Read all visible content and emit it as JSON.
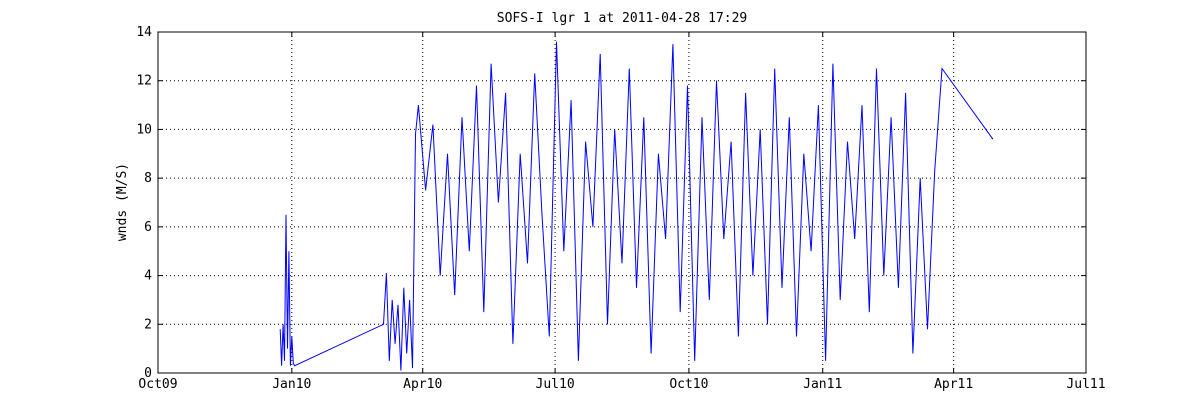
{
  "chart_data": {
    "type": "line",
    "title": "SOFS-I lgr 1 at 2011-04-28 17:29",
    "xlabel": "",
    "ylabel": "wnds (M/S)",
    "x_range": [
      "2009-10-01",
      "2011-07-01"
    ],
    "x_ticks": [
      {
        "date": "2009-10-01",
        "label": "Oct09"
      },
      {
        "date": "2010-01-01",
        "label": "Jan10"
      },
      {
        "date": "2010-04-01",
        "label": "Apr10"
      },
      {
        "date": "2010-07-01",
        "label": "Jul10"
      },
      {
        "date": "2010-10-01",
        "label": "Oct10"
      },
      {
        "date": "2011-01-01",
        "label": "Jan11"
      },
      {
        "date": "2011-04-01",
        "label": "Apr11"
      },
      {
        "date": "2011-07-01",
        "label": "Jul11"
      }
    ],
    "ylim": [
      0,
      14
    ],
    "y_ticks": [
      0,
      2,
      4,
      6,
      8,
      10,
      12,
      14
    ],
    "grid": true,
    "line_color": "#0000ff",
    "series": [
      {
        "x": [
          "2009-12-24",
          "2009-12-25",
          "2009-12-26",
          "2009-12-27",
          "2009-12-28",
          "2009-12-29",
          "2009-12-30",
          "2009-12-31",
          "2010-01-01",
          "2010-01-02",
          "2010-01-03",
          "2010-03-05",
          "2010-03-07",
          "2010-03-09",
          "2010-03-11",
          "2010-03-13",
          "2010-03-15",
          "2010-03-17",
          "2010-03-19",
          "2010-03-21",
          "2010-03-23",
          "2010-03-25",
          "2010-03-27",
          "2010-03-29",
          "2010-04-03",
          "2010-04-08",
          "2010-04-13",
          "2010-04-18",
          "2010-04-23",
          "2010-04-28",
          "2010-05-03",
          "2010-05-08",
          "2010-05-13",
          "2010-05-18",
          "2010-05-23",
          "2010-05-28",
          "2010-06-02",
          "2010-06-07",
          "2010-06-12",
          "2010-06-17",
          "2010-06-22",
          "2010-06-27",
          "2010-07-02",
          "2010-07-07",
          "2010-07-12",
          "2010-07-17",
          "2010-07-22",
          "2010-07-27",
          "2010-08-01",
          "2010-08-06",
          "2010-08-11",
          "2010-08-16",
          "2010-08-21",
          "2010-08-26",
          "2010-08-31",
          "2010-09-05",
          "2010-09-10",
          "2010-09-15",
          "2010-09-20",
          "2010-09-25",
          "2010-09-30",
          "2010-10-05",
          "2010-10-10",
          "2010-10-15",
          "2010-10-20",
          "2010-10-25",
          "2010-10-30",
          "2010-11-04",
          "2010-11-09",
          "2010-11-14",
          "2010-11-19",
          "2010-11-24",
          "2010-11-29",
          "2010-12-04",
          "2010-12-09",
          "2010-12-14",
          "2010-12-19",
          "2010-12-24",
          "2010-12-29",
          "2011-01-03",
          "2011-01-08",
          "2011-01-13",
          "2011-01-18",
          "2011-01-23",
          "2011-01-28",
          "2011-02-02",
          "2011-02-07",
          "2011-02-12",
          "2011-02-17",
          "2011-02-22",
          "2011-02-27",
          "2011-03-04",
          "2011-03-09",
          "2011-03-14",
          "2011-03-19",
          "2011-03-24",
          "2011-04-28"
        ],
        "y": [
          1.8,
          0.3,
          2.0,
          0.5,
          6.5,
          1.0,
          5.0,
          0.3,
          1.5,
          0.4,
          0.3,
          2.0,
          4.1,
          0.5,
          3.0,
          1.2,
          2.8,
          0.1,
          3.5,
          0.8,
          3.0,
          0.2,
          9.8,
          11.0,
          7.5,
          10.2,
          4.0,
          9.0,
          3.2,
          10.5,
          5.0,
          11.8,
          2.5,
          12.7,
          7.0,
          11.5,
          1.2,
          9.0,
          4.5,
          12.3,
          6.5,
          1.5,
          13.6,
          5.0,
          11.2,
          0.5,
          9.5,
          6.0,
          13.1,
          2.0,
          10.0,
          4.5,
          12.5,
          3.5,
          10.5,
          0.8,
          9.0,
          5.5,
          13.5,
          2.5,
          11.8,
          0.5,
          10.5,
          3.0,
          12.0,
          5.5,
          9.5,
          1.5,
          11.5,
          4.0,
          10.0,
          2.0,
          12.5,
          3.5,
          10.5,
          1.5,
          9.0,
          5.0,
          11.0,
          0.5,
          12.7,
          3.0,
          9.5,
          5.5,
          11.0,
          2.5,
          12.5,
          4.0,
          10.5,
          3.5,
          11.5,
          0.8,
          8.0,
          1.8,
          8.3,
          12.5,
          9.6
        ]
      }
    ]
  }
}
